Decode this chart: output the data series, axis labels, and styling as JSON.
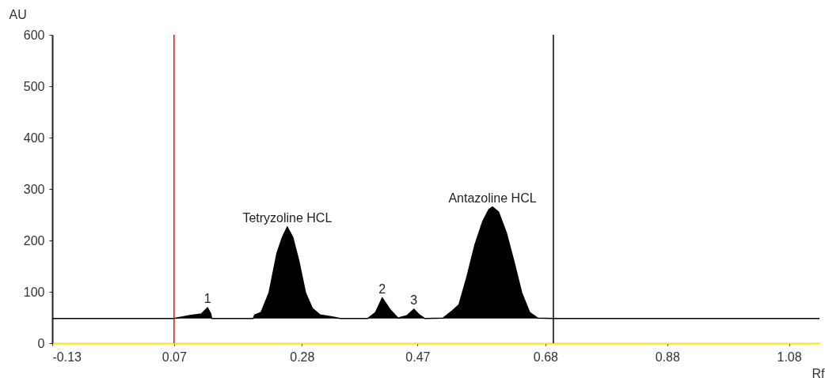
{
  "chart_data": {
    "type": "area",
    "xlabel": "Rf",
    "ylabel": "AU",
    "xlim": [
      -0.13,
      1.13
    ],
    "ylim": [
      0,
      600
    ],
    "xticks": [
      -0.13,
      0.07,
      0.28,
      0.47,
      0.68,
      0.88,
      1.08
    ],
    "yticks": [
      0,
      100,
      200,
      300,
      400,
      500,
      600
    ],
    "grid": false,
    "x": [
      -0.13,
      0.07,
      0.096,
      0.115,
      0.125,
      0.13,
      0.132,
      0.2,
      0.2025,
      0.213,
      0.226,
      0.239,
      0.248,
      0.256,
      0.265,
      0.275,
      0.286,
      0.297,
      0.31,
      0.33,
      0.343,
      0.388,
      0.401,
      0.412,
      0.425,
      0.438,
      0.453,
      0.464,
      0.473,
      0.482,
      0.512,
      0.527,
      0.538,
      0.551,
      0.564,
      0.577,
      0.587,
      0.593,
      0.603,
      0.616,
      0.628,
      0.641,
      0.654,
      0.667,
      0.693,
      1.13
    ],
    "series": [
      {
        "color": "#000000",
        "values": [
          48,
          48,
          54,
          57,
          69,
          58,
          48,
          48,
          55,
          60,
          98,
          175,
          206,
          226,
          206,
          160,
          98,
          68,
          55,
          51,
          48,
          48,
          60,
          88,
          65,
          49,
          54,
          66,
          55,
          48,
          49,
          63,
          75,
          129,
          191,
          237,
          260,
          265,
          255,
          214,
          160,
          98,
          60,
          49,
          48,
          48
        ]
      }
    ],
    "ref_lines": [
      {
        "axis": "x",
        "value": 0.07,
        "color": "#ff0000"
      },
      {
        "axis": "x",
        "value": 0.693,
        "color": "#000000"
      }
    ],
    "annotations": [
      {
        "text": "1",
        "x": 0.125,
        "y": 69
      },
      {
        "text": "Tetryzoline HCL",
        "x": 0.256,
        "y": 226
      },
      {
        "text": "2",
        "x": 0.412,
        "y": 88
      },
      {
        "text": "3",
        "x": 0.464,
        "y": 66
      },
      {
        "text": "Antazoline HCL",
        "x": 0.593,
        "y": 265
      }
    ]
  }
}
